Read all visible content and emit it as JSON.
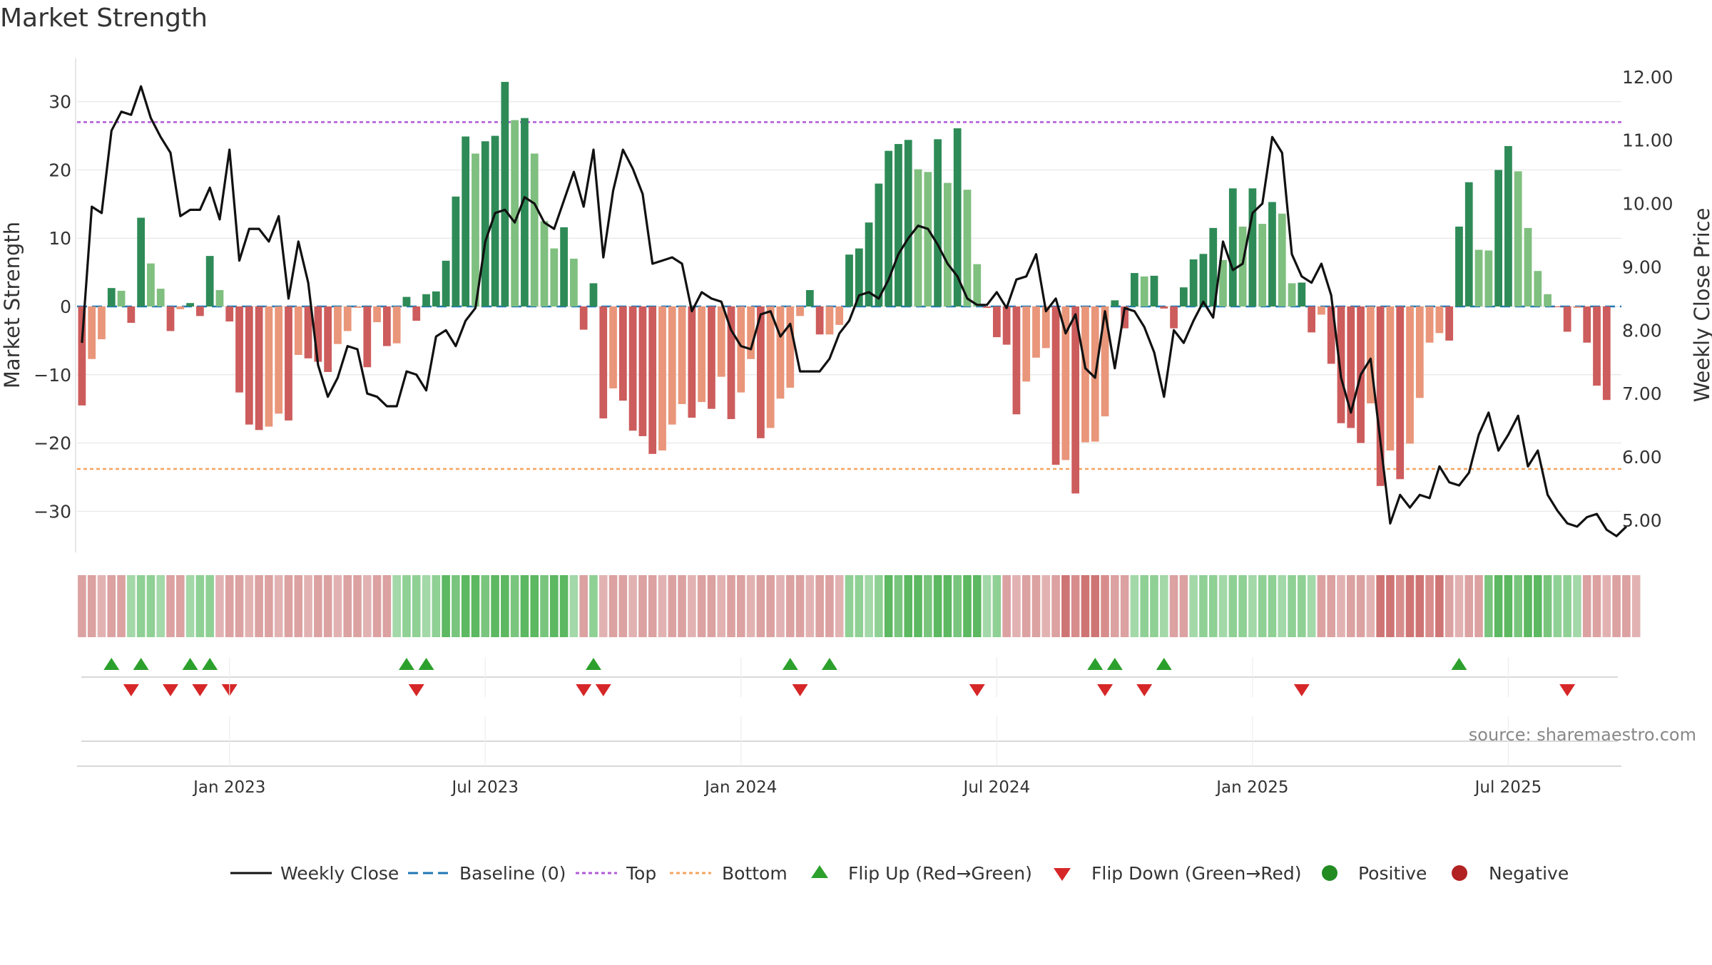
{
  "colors": {
    "posDark": "#2e8b57",
    "posLight": "#7fbf7f",
    "negDark": "#cd5c5c",
    "negLight": "#e9967a",
    "line": "#111111",
    "baseline": "#1f77b4",
    "top": "#b05ad8",
    "bottom": "#f4a460",
    "flipUp": "#2ca02c",
    "flipDown": "#d62728",
    "positiveDot": "#228b22",
    "negativeDot": "#b22222",
    "grid": "#e6e6e6",
    "text": "#333333",
    "source": "#888888"
  },
  "chart_data": {
    "type": "bar",
    "title": "Market Strength",
    "ylabel": "Market Strength",
    "y2label": "Weekly Close Price",
    "ylim": [
      -35.5,
      35.5
    ],
    "y2lim": [
      4.55,
      12.2
    ],
    "yticks": [
      "30",
      "20",
      "10",
      "0",
      "−10",
      "−20",
      "−30"
    ],
    "yticks_values": [
      30,
      20,
      10,
      0,
      -10,
      -20,
      -30
    ],
    "y2ticks": [
      "12.00",
      "11.00",
      "10.00",
      "9.00",
      "8.00",
      "7.00",
      "6.00",
      "5.00"
    ],
    "y2ticks_values": [
      12,
      11,
      10,
      9,
      8,
      7,
      6,
      5
    ],
    "xticks": [
      "Jan 2023",
      "Jul 2023",
      "Jan 2024",
      "Jul 2024",
      "Jan 2025",
      "Jul 2025"
    ],
    "xticks_weeks": [
      15,
      41,
      67,
      93,
      119,
      145
    ],
    "top_line": 27,
    "bottom_line": -23.8,
    "weeks": 157,
    "strength": [
      -14.5,
      -7.7,
      -4.8,
      2.7,
      2.3,
      -2.4,
      13,
      6.3,
      2.6,
      -3.6,
      -0.4,
      0.5,
      -1.4,
      7.4,
      2.4,
      -2.2,
      -12.6,
      -17.3,
      -18.1,
      -17.6,
      -15.7,
      -16.7,
      -7.1,
      -7.6,
      -8.1,
      -9.6,
      -5.5,
      -3.6,
      -0.2,
      -8.9,
      -2.3,
      -5.8,
      -5.4,
      1.4,
      -2.1,
      1.8,
      2.2,
      6.7,
      16.1,
      24.9,
      22.4,
      24.2,
      25,
      32.9,
      27.3,
      27.6,
      22.4,
      12.5,
      8.5,
      11.6,
      7,
      -3.4,
      3.4,
      -16.4,
      -12,
      -13.8,
      -18.2,
      -19,
      -21.6,
      -21.1,
      -17.3,
      -14.3,
      -16.3,
      -14,
      -15,
      -10.3,
      -16.5,
      -12.6,
      -7.7,
      -19.3,
      -17.8,
      -13.5,
      -11.9,
      -1.4,
      2.4,
      -4.1,
      -4.1,
      -2.7,
      7.6,
      8.5,
      12.3,
      18,
      22.8,
      23.8,
      24.4,
      20.1,
      19.7,
      24.5,
      18.1,
      26.1,
      17.1,
      6.2,
      -0.2,
      -4.5,
      -5.6,
      -15.8,
      -11,
      -7.5,
      -6.1,
      -23.2,
      -22.5,
      -27.4,
      -19.9,
      -19.8,
      -16.1,
      0.9,
      -3.2,
      4.9,
      4.4,
      4.5,
      -0.3,
      -3.2,
      2.8,
      6.9,
      7.7,
      11.5,
      6.8,
      17.3,
      11.7,
      17.3,
      12.1,
      15.3,
      13.6,
      3.4,
      3.5,
      -3.8,
      -1.2,
      -8.4,
      -17.1,
      -17.8,
      -20,
      -14.2,
      -26.3,
      -21.1,
      -25.3,
      -20.1,
      -13.4,
      -5.3,
      -3.9,
      -5,
      11.7,
      18.2,
      8.3,
      8.2,
      20,
      23.5,
      19.8,
      11.5,
      5.2,
      1.8,
      -0.1,
      -3.7,
      -0.2,
      -5.3,
      -11.6,
      -13.7
    ],
    "close": [
      7.8,
      9.95,
      9.85,
      11.15,
      11.45,
      11.4,
      11.85,
      11.35,
      11.05,
      10.8,
      9.8,
      9.9,
      9.9,
      10.25,
      9.75,
      10.85,
      9.1,
      9.6,
      9.6,
      9.4,
      9.8,
      8.5,
      9.4,
      8.75,
      7.45,
      6.95,
      7.25,
      7.75,
      7.7,
      7.0,
      6.95,
      6.8,
      6.8,
      7.35,
      7.3,
      7.05,
      7.9,
      8.0,
      7.75,
      8.15,
      8.35,
      9.4,
      9.85,
      9.9,
      9.7,
      10.1,
      10.0,
      9.7,
      9.6,
      10.05,
      10.5,
      9.95,
      10.85,
      9.15,
      10.2,
      10.85,
      10.55,
      10.15,
      9.05,
      9.1,
      9.15,
      9.05,
      8.3,
      8.6,
      8.5,
      8.45,
      8.0,
      7.75,
      7.7,
      8.25,
      8.3,
      7.9,
      8.1,
      7.35,
      7.35,
      7.35,
      7.55,
      7.95,
      8.15,
      8.55,
      8.6,
      8.5,
      8.8,
      9.2,
      9.45,
      9.65,
      9.6,
      9.35,
      9.05,
      8.85,
      8.5,
      8.4,
      8.4,
      8.6,
      8.35,
      8.8,
      8.85,
      9.2,
      8.3,
      8.5,
      7.95,
      8.25,
      7.4,
      7.25,
      8.3,
      7.4,
      8.35,
      8.3,
      8.05,
      7.65,
      6.95,
      8.0,
      7.8,
      8.15,
      8.45,
      8.2,
      9.4,
      8.95,
      9.05,
      9.85,
      10.0,
      11.05,
      10.8,
      9.2,
      8.85,
      8.75,
      9.05,
      8.55,
      7.25,
      6.7,
      7.3,
      7.55,
      6.25,
      4.95,
      5.4,
      5.2,
      5.4,
      5.35,
      5.85,
      5.6,
      5.55,
      5.75,
      6.35,
      6.7,
      6.1,
      6.35,
      6.65,
      5.85,
      6.1,
      5.4,
      5.15,
      4.95,
      4.9,
      5.05,
      5.1,
      4.85,
      4.75,
      4.9
    ],
    "band": [
      -1,
      -1,
      -1,
      -1,
      -1,
      1,
      1,
      1,
      1,
      -1,
      -1,
      1,
      1,
      1,
      -1,
      -1,
      -1,
      -1,
      -1,
      -1,
      -1,
      -1,
      -1,
      -1,
      -1,
      -1,
      -1,
      -1,
      -1,
      -1,
      -1,
      -1,
      1,
      1,
      1,
      1,
      1,
      2,
      2,
      2,
      2,
      2,
      2,
      2,
      2,
      2,
      2,
      2,
      2,
      2,
      1,
      -1,
      1,
      -1,
      -1,
      -1,
      -1,
      -1,
      -1,
      -1,
      -1,
      -1,
      -1,
      -1,
      -1,
      -1,
      -1,
      -1,
      -1,
      -1,
      -1,
      -1,
      -1,
      -1,
      -1,
      -1,
      -1,
      -1,
      1,
      1,
      1,
      1,
      2,
      2,
      2,
      2,
      2,
      2,
      2,
      2,
      2,
      2,
      1,
      1,
      -1,
      -1,
      -1,
      -1,
      -1,
      -1,
      -2,
      -2,
      -2,
      -2,
      -2,
      -1,
      -1,
      1,
      1,
      1,
      1,
      -1,
      -1,
      1,
      1,
      1,
      1,
      1,
      1,
      1,
      1,
      1,
      1,
      1,
      1,
      1,
      -1,
      -1,
      -1,
      -1,
      -1,
      -1,
      -2,
      -2,
      -2,
      -2,
      -2,
      -2,
      -2,
      -1,
      -1,
      -1,
      -1,
      2,
      2,
      2,
      2,
      2,
      2,
      2,
      1,
      1,
      1,
      -1,
      -1,
      -1,
      -1,
      -1,
      -1
    ],
    "flip_up_weeks": [
      3,
      6,
      11,
      13,
      33,
      35,
      52,
      72,
      76,
      103,
      105,
      110,
      140
    ],
    "flip_down_weeks": [
      5,
      9,
      12,
      15,
      34,
      51,
      53,
      73,
      91,
      104,
      108,
      124,
      151
    ],
    "legend": [
      "Weekly Close",
      "Baseline (0)",
      "Top",
      "Bottom",
      "Flip Up (Red→Green)",
      "Flip Down (Green→Red)",
      "Positive",
      "Negative"
    ],
    "legend_position": "bottom-center",
    "source": "source: sharemaestro.com"
  }
}
